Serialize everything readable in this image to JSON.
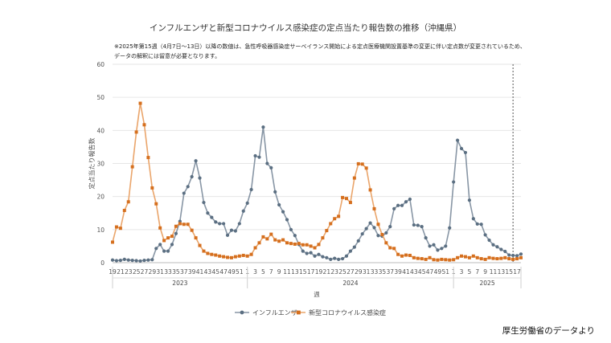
{
  "chart_data": {
    "type": "line",
    "title": "インフルエンザと新型コロナウイルス感染症の定点当たり報告数の推移（沖縄県）",
    "notes": [
      "※2025年第15週（4月7日〜13日）以降の数値は、急性呼吸器感染症サーベイランス開始による定点医療機関設置基準の変更に伴い定点数が変更されているため、",
      "データの解釈には留意が必要となります。"
    ],
    "xlabel": "週",
    "ylabel": "定点当たり報告数",
    "ylim": [
      0,
      60
    ],
    "yticks": [
      "0",
      "10",
      "20",
      "30",
      "40",
      "50",
      "60"
    ],
    "xtick_labels": [
      "19",
      "21",
      "23",
      "25",
      "27",
      "29",
      "31",
      "33",
      "35",
      "37",
      "39",
      "41",
      "43",
      "45",
      "47",
      "49",
      "51",
      "1",
      "3",
      "5",
      "7",
      "9",
      "11",
      "13",
      "15",
      "17",
      "19",
      "21",
      "23",
      "25",
      "27",
      "29",
      "31",
      "33",
      "35",
      "37",
      "39",
      "41",
      "43",
      "45",
      "47",
      "49",
      "51",
      "1",
      "3",
      "5",
      "7",
      "9",
      "11",
      "13",
      "15",
      "17"
    ],
    "years": [
      "2023",
      "2024",
      "2025"
    ],
    "x_start_week": "2023-19",
    "marker_line_label": "2025-15",
    "series": [
      {
        "name": "インフルエンザ",
        "color": "#5b6f82",
        "values": [
          0.8,
          0.6,
          0.7,
          1.0,
          0.8,
          0.7,
          0.6,
          0.5,
          0.7,
          0.8,
          0.9,
          4.3,
          5.5,
          3.5,
          3.5,
          5.5,
          8.8,
          12.5,
          21.0,
          23.0,
          26.0,
          30.8,
          25.6,
          18.2,
          15.0,
          13.7,
          12.3,
          11.8,
          11.8,
          8.3,
          9.8,
          9.6,
          11.8,
          15.6,
          18.0,
          22.1,
          32.3,
          31.9,
          41.0,
          30.0,
          28.7,
          21.4,
          17.5,
          15.4,
          13.0,
          10.0,
          8.2,
          5.5,
          3.5,
          2.8,
          3.0,
          2.0,
          2.5,
          1.8,
          1.5,
          1.0,
          1.3,
          1.0,
          1.2,
          2.0,
          3.5,
          4.7,
          6.6,
          8.7,
          10.3,
          12.0,
          10.6,
          8.2,
          8.0,
          9.0,
          10.9,
          16.3,
          17.3,
          17.3,
          18.4,
          19.2,
          11.4,
          11.3,
          10.9,
          7.5,
          5.0,
          5.4,
          3.8,
          4.3,
          5.0,
          10.5,
          24.4,
          37.0,
          34.5,
          33.3,
          18.9,
          13.3,
          11.7,
          11.6,
          8.4,
          6.8,
          5.4,
          4.8,
          4.0,
          3.4,
          2.3,
          2.2,
          2.1,
          2.6
        ],
        "category_count_note": "weekly values 2023-19 to 2025-17"
      },
      {
        "name": "新型コロナウイルス感染症",
        "color": "#d56f1e",
        "values": [
          6.2,
          10.8,
          10.4,
          15.8,
          18.4,
          29.0,
          39.5,
          48.2,
          41.7,
          31.8,
          22.6,
          17.8,
          10.5,
          6.7,
          7.5,
          8.0,
          11.0,
          11.8,
          11.6,
          11.6,
          9.8,
          7.5,
          5.2,
          3.5,
          2.8,
          2.5,
          2.3,
          2.0,
          1.8,
          1.6,
          1.5,
          1.8,
          2.0,
          2.2,
          2.0,
          2.5,
          4.5,
          6.0,
          7.8,
          7.2,
          8.6,
          6.9,
          6.5,
          6.9,
          6.0,
          5.8,
          5.6,
          5.8,
          5.4,
          5.4,
          5.0,
          4.5,
          5.5,
          7.5,
          9.7,
          11.8,
          13.3,
          14.0,
          19.7,
          19.4,
          18.2,
          25.6,
          29.9,
          29.8,
          28.6,
          22.0,
          16.3,
          11.6,
          8.5,
          6.0,
          4.5,
          4.3,
          2.5,
          2.0,
          2.3,
          2.2,
          1.5,
          1.3,
          1.2,
          1.0,
          1.5,
          0.9,
          0.8,
          1.0,
          0.9,
          0.8,
          0.9,
          1.5,
          2.0,
          1.8,
          1.5,
          2.0,
          1.5,
          1.2,
          1.0,
          1.5,
          1.3,
          1.2,
          1.3,
          1.5,
          1.2,
          1.0,
          1.2,
          1.5
        ]
      }
    ]
  },
  "credit": "厚生労働省のデータより"
}
